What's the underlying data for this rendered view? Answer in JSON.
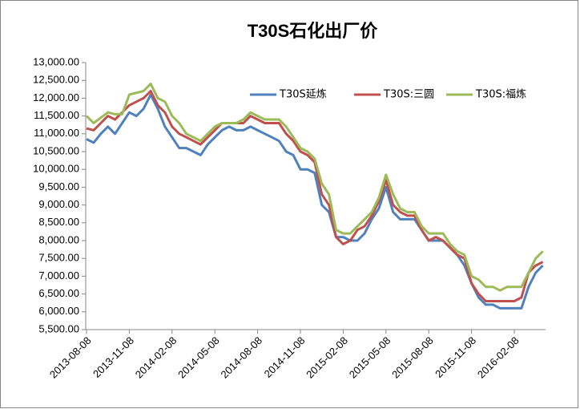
{
  "chart_data": {
    "type": "line",
    "title": "T30S石化出厂价",
    "categories": [
      "2013-08-08",
      null,
      null,
      null,
      null,
      null,
      "2013-11-08",
      null,
      null,
      null,
      null,
      null,
      "2014-02-08",
      null,
      null,
      null,
      null,
      null,
      "2014-05-08",
      null,
      null,
      null,
      null,
      null,
      "2014-08-08",
      null,
      null,
      null,
      null,
      null,
      "2014-11-08",
      null,
      null,
      null,
      null,
      null,
      "2015-02-08",
      null,
      null,
      null,
      null,
      null,
      "2015-05-08",
      null,
      null,
      null,
      null,
      null,
      "2015-08-08",
      null,
      null,
      null,
      null,
      null,
      "2015-11-08",
      null,
      null,
      null,
      null,
      null,
      "2016-02-08",
      null,
      null,
      null,
      null
    ],
    "series": [
      {
        "name": "T30S延炼",
        "color": "#4f81bd",
        "values": [
          10850,
          10750,
          11000,
          11200,
          11000,
          11300,
          11600,
          11500,
          11700,
          12100,
          11700,
          11200,
          10900,
          10600,
          10600,
          10500,
          10400,
          10700,
          10900,
          11100,
          11200,
          11100,
          11100,
          11200,
          11100,
          11000,
          10900,
          10800,
          10500,
          10400,
          10000,
          10000,
          9900,
          9000,
          8800,
          8100,
          8100,
          8000,
          8000,
          8200,
          8600,
          8900,
          9500,
          8800,
          8600,
          8600,
          8600,
          8300,
          8000,
          8000,
          8000,
          7800,
          7600,
          7300,
          6800,
          6400,
          6200,
          6200,
          6100,
          6100,
          6100,
          6100,
          6700,
          7100,
          7300
        ]
      },
      {
        "name": "T30S:三圆",
        "color": "#c0504d",
        "values": [
          11150,
          11100,
          11300,
          11500,
          11400,
          11600,
          11800,
          11900,
          12000,
          12200,
          11800,
          11600,
          11200,
          11000,
          10900,
          10800,
          10700,
          10900,
          11100,
          11300,
          11300,
          11300,
          11300,
          11500,
          11400,
          11300,
          11300,
          11300,
          11000,
          10800,
          10500,
          10400,
          10200,
          9300,
          9000,
          8100,
          7900,
          8000,
          8300,
          8400,
          8700,
          9100,
          9700,
          9000,
          8800,
          8700,
          8700,
          8300,
          8000,
          8100,
          8000,
          7800,
          7600,
          7500,
          6800,
          6500,
          6300,
          6300,
          6300,
          6300,
          6300,
          6400,
          7100,
          7300,
          7400
        ]
      },
      {
        "name": "T30S:福炼",
        "color": "#9bbb59",
        "values": [
          11500,
          11300,
          11450,
          11600,
          11550,
          11550,
          12100,
          12150,
          12200,
          12400,
          12000,
          11900,
          11500,
          11300,
          11000,
          10900,
          10800,
          11000,
          11200,
          11300,
          11300,
          11300,
          11400,
          11600,
          11500,
          11400,
          11400,
          11400,
          11200,
          10900,
          10600,
          10500,
          10300,
          9600,
          9300,
          8300,
          8200,
          8200,
          8400,
          8600,
          8800,
          9200,
          9850,
          9300,
          8900,
          8800,
          8800,
          8400,
          8200,
          8200,
          8200,
          7900,
          7700,
          7600,
          7000,
          6900,
          6700,
          6700,
          6600,
          6700,
          6700,
          6700,
          7100,
          7500,
          7700
        ]
      }
    ],
    "ylim": [
      5500,
      13000
    ],
    "yticks": [
      {
        "value": 5500,
        "label": "5,500.00"
      },
      {
        "value": 6000,
        "label": "6,000.00"
      },
      {
        "value": 6500,
        "label": "6,500.00"
      },
      {
        "value": 7000,
        "label": "7,000.00"
      },
      {
        "value": 7500,
        "label": "7,500.00"
      },
      {
        "value": 8000,
        "label": "8,000.00"
      },
      {
        "value": 8500,
        "label": "8,500.00"
      },
      {
        "value": 9000,
        "label": "9,000.00"
      },
      {
        "value": 9500,
        "label": "9,500.00"
      },
      {
        "value": 10000,
        "label": "10,000.00"
      },
      {
        "value": 10500,
        "label": "10,500.00"
      },
      {
        "value": 11000,
        "label": "11,000.00"
      },
      {
        "value": 11500,
        "label": "11,500.00"
      },
      {
        "value": 12000,
        "label": "12,000.00"
      },
      {
        "value": 12500,
        "label": "12,500.00"
      },
      {
        "value": 13000,
        "label": "13,000.00"
      }
    ],
    "grid": false,
    "legend": "top-right"
  }
}
